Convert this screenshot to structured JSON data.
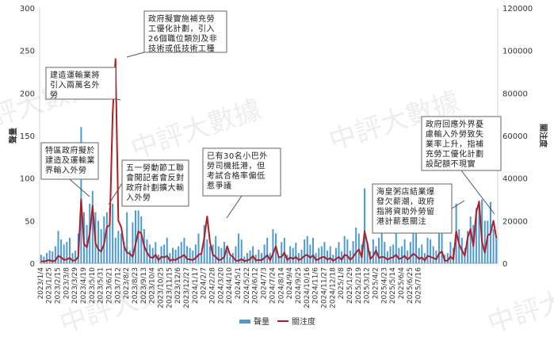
{
  "chart_data": {
    "type": "bar",
    "title": "",
    "left_axis": {
      "label": "聲量",
      "ylim": [
        0,
        300
      ],
      "ticks": [
        0,
        50,
        100,
        150,
        200,
        250,
        300
      ]
    },
    "right_axis": {
      "label": "關注度",
      "ylim": [
        0,
        120000
      ],
      "ticks": [
        0,
        20000,
        40000,
        60000,
        80000,
        100000,
        120000
      ]
    },
    "x_tick_labels": [
      "2023/1/4",
      "2023/1/25",
      "2023/2/15",
      "2023/3/8",
      "2023/3/29",
      "2023/4/19",
      "2023/5/10",
      "2023/5/31",
      "2023/6/21",
      "2023/7/12",
      "2023/8/2",
      "2023/8/23",
      "2023/9/13",
      "2023/10/4",
      "2023/10/25",
      "2023/11/15",
      "2023/12/6",
      "2023/12/27",
      "2024/1/17",
      "2024/2/7",
      "2024/2/28",
      "2024/3/20",
      "2024/4/10",
      "2024/5/1",
      "2024/5/22",
      "2024/6/12",
      "2024/7/3",
      "2024/7/24",
      "2024/8/14",
      "2024/9/4",
      "2024/9/25",
      "2024/10/16",
      "2024/11/6",
      "2024/11/27",
      "2024/12/18",
      "2025/1/8",
      "2025/1/29",
      "2025/2/19",
      "2025/3/12",
      "2025/4/2",
      "2025/4/23",
      "2025/5/14",
      "2025/6/4",
      "2025/6/25",
      "2025/7/16"
    ],
    "points_per_tick": 3,
    "series": [
      {
        "name": "聲量",
        "type": "bar",
        "axis": "left",
        "color": "#4a9ad6",
        "values": [
          10,
          8,
          12,
          15,
          14,
          20,
          38,
          28,
          22,
          25,
          30,
          12,
          15,
          35,
          160,
          60,
          45,
          70,
          85,
          60,
          50,
          40,
          55,
          60,
          65,
          70,
          30,
          38,
          35,
          25,
          60,
          15,
          48,
          62,
          62,
          55,
          40,
          28,
          22,
          18,
          25,
          10,
          20,
          22,
          30,
          12,
          18,
          16,
          20,
          25,
          30,
          20,
          18,
          15,
          22,
          35,
          12,
          45,
          28,
          20,
          22,
          32,
          20,
          18,
          25,
          15,
          8,
          12,
          20,
          35,
          28,
          8,
          12,
          15,
          20,
          10,
          16,
          12,
          22,
          30,
          12,
          40,
          35,
          8,
          25,
          30,
          10,
          20,
          18,
          24,
          12,
          16,
          28,
          32,
          22,
          30,
          12,
          18,
          20,
          25,
          15,
          20,
          10,
          18,
          25,
          14,
          32,
          28,
          15,
          26,
          42,
          35,
          22,
          88,
          25,
          14,
          28,
          20,
          30,
          55,
          25,
          14,
          20,
          22,
          35,
          18,
          20,
          28,
          15,
          25,
          40,
          35,
          18,
          22,
          12,
          30,
          28,
          20,
          15,
          38,
          45,
          10,
          12,
          25,
          18,
          70,
          40,
          30,
          18,
          38,
          55,
          45,
          65,
          70,
          75,
          50,
          50,
          72,
          40,
          32
        ]
      },
      {
        "name": "關注度",
        "type": "line",
        "axis": "right",
        "color": "#b01f24",
        "values": [
          1000,
          800,
          1200,
          1500,
          900,
          1300,
          3500,
          2800,
          1600,
          1800,
          2500,
          1200,
          1400,
          3000,
          30000,
          9000,
          7500,
          14000,
          27000,
          9500,
          6500,
          5500,
          9000,
          17000,
          18000,
          70000,
          96000,
          20000,
          17000,
          8000,
          5000,
          4500,
          3000,
          9000,
          15000,
          14000,
          8000,
          5000,
          3000,
          2500,
          4000,
          1500,
          3000,
          2800,
          3500,
          1200,
          1800,
          1500,
          2500,
          3000,
          4000,
          2000,
          1800,
          1500,
          2500,
          4000,
          4500,
          12000,
          22000,
          10000,
          4000,
          3000,
          1500,
          1800,
          3000,
          8000,
          4000,
          3000,
          1200,
          1200,
          2000,
          1000,
          1400,
          1800,
          3500,
          1300,
          1600,
          1400,
          2500,
          3800,
          1500,
          4500,
          8000,
          2800,
          3000,
          5000,
          1500,
          2800,
          2000,
          3000,
          1500,
          2200,
          3500,
          4000,
          2500,
          3800,
          1500,
          2000,
          2800,
          3000,
          1700,
          2500,
          1200,
          2000,
          3000,
          1600,
          4000,
          3500,
          1600,
          3000,
          5000,
          6500,
          2800,
          15000,
          9000,
          2000,
          3500,
          6000,
          2500,
          3000,
          2800,
          1700,
          2500,
          2800,
          4000,
          2000,
          2500,
          3500,
          1700,
          3000,
          4500,
          3500,
          2000,
          2800,
          1300,
          3500,
          3000,
          2500,
          1800,
          4500,
          5500,
          1200,
          1200,
          3200,
          1800,
          15000,
          9000,
          6000,
          3500,
          12000,
          16000,
          8000,
          24000,
          29000,
          10000,
          5000,
          13000,
          14000,
          20000,
          12000
        ]
      }
    ],
    "annotations": [
      "政府擬實施補充勞工優化計劃，引入26個職位類別及非技術或低技術工種",
      "建造運輸業將引入兩萬名外勞",
      "特區政府擬於建造及運輸業界輸入外勞",
      "五一勞動節工聯會開記者會反對政府計劃擴大輸入外勞",
      "已有30名小巴外勞司機抵港，但考試合格率偏低惹爭議",
      "海皇粥店結業爆發欠薪潮，政府指將資助外勞留港計薪惹關注",
      "政府回應外界憂慮輸入外勞致失業率上升，指補充勞工優化計劃設配額不現實"
    ],
    "legend": {
      "placement": "bottom",
      "items": [
        "聲量",
        "關注度"
      ]
    },
    "watermark": "中評大數據",
    "grid": false
  }
}
